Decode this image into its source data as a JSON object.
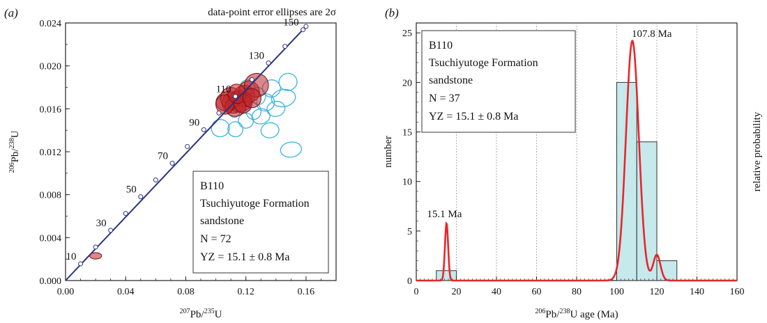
{
  "panel_a": {
    "label_open": "(",
    "label_letter": "a",
    "label_close": ")",
    "note": "data-point error ellipses are 2σ",
    "axis": {
      "x_sup": "207",
      "x_main": "Pb/",
      "x_sup2": "235",
      "x_tail": "U",
      "y_sup": "206",
      "y_main": "Pb/",
      "y_sup2": "238",
      "y_tail": "U"
    },
    "legend": {
      "line1": "B110",
      "line2": "Tsuchiyutoge Formation",
      "line3": "sandstone",
      "line4": "N = 72",
      "line5": "YZ = 15.1 ± 0.8 Ma"
    }
  },
  "panel_b": {
    "label_open": "(",
    "label_letter": "b",
    "label_close": ")",
    "axis": {
      "x_sup": "206",
      "x_main": "Pb/",
      "x_sup2": "238",
      "x_tail": "U age (Ma)",
      "y_left": "number",
      "y_right": "relative probability"
    },
    "legend": {
      "line1": "B110",
      "line2": "Tsuchiyutoge Formation",
      "line3": "sandstone",
      "line4": "N = 37",
      "line5": "YZ = 15.1 ± 0.8 Ma"
    }
  },
  "chart_data": [
    {
      "type": "scatter",
      "subtype": "concordia",
      "xlim": [
        0.0,
        0.18
      ],
      "ylim": [
        0.0,
        0.024
      ],
      "x_ticks": [
        0.0,
        0.04,
        0.08,
        0.12,
        0.16
      ],
      "x_tick_labels": [
        "0.00",
        "0.04",
        "0.08",
        "0.12",
        "0.16"
      ],
      "y_ticks": [
        0.0,
        0.004,
        0.008,
        0.012,
        0.016,
        0.02,
        0.024
      ],
      "y_tick_labels": [
        "0.000",
        "0.004",
        "0.008",
        "0.012",
        "0.016",
        "0.020",
        "0.024"
      ],
      "concordia_markers": [
        {
          "age": 10,
          "label": "10",
          "x": 0.01,
          "y": 0.00156
        },
        {
          "age": 20,
          "label": "",
          "x": 0.02,
          "y": 0.00312
        },
        {
          "age": 30,
          "label": "30",
          "x": 0.03,
          "y": 0.00468
        },
        {
          "age": 40,
          "label": "",
          "x": 0.04,
          "y": 0.00625
        },
        {
          "age": 50,
          "label": "50",
          "x": 0.05,
          "y": 0.00781
        },
        {
          "age": 60,
          "label": "",
          "x": 0.06,
          "y": 0.00937
        },
        {
          "age": 70,
          "label": "70",
          "x": 0.071,
          "y": 0.01093
        },
        {
          "age": 80,
          "label": "",
          "x": 0.081,
          "y": 0.01249
        },
        {
          "age": 90,
          "label": "90",
          "x": 0.092,
          "y": 0.01405
        },
        {
          "age": 100,
          "label": "",
          "x": 0.102,
          "y": 0.01561
        },
        {
          "age": 110,
          "label": "110",
          "x": 0.113,
          "y": 0.01716
        },
        {
          "age": 120,
          "label": "",
          "x": 0.124,
          "y": 0.01872
        },
        {
          "age": 130,
          "label": "130",
          "x": 0.135,
          "y": 0.02027
        },
        {
          "age": 140,
          "label": "",
          "x": 0.146,
          "y": 0.02182
        },
        {
          "age": 150,
          "label": "150",
          "x": 0.158,
          "y": 0.02337
        },
        {
          "age": 152,
          "label": "",
          "x": 0.16,
          "y": 0.02368
        }
      ],
      "series": [
        {
          "color": "#3bb3e0",
          "fill": "none",
          "ellipses": [
            {
              "x": 0.148,
              "y": 0.0185,
              "rx": 0.006,
              "ry": 0.0008,
              "rot": -12
            },
            {
              "x": 0.137,
              "y": 0.0179,
              "rx": 0.006,
              "ry": 0.0008,
              "rot": -10
            },
            {
              "x": 0.145,
              "y": 0.017,
              "rx": 0.008,
              "ry": 0.0008,
              "rot": -10
            },
            {
              "x": 0.133,
              "y": 0.0166,
              "rx": 0.006,
              "ry": 0.0008,
              "rot": -10
            },
            {
              "x": 0.128,
              "y": 0.0172,
              "rx": 0.005,
              "ry": 0.0008,
              "rot": -10
            },
            {
              "x": 0.118,
              "y": 0.0164,
              "rx": 0.005,
              "ry": 0.0008,
              "rot": -12
            },
            {
              "x": 0.125,
              "y": 0.0158,
              "rx": 0.005,
              "ry": 0.0008,
              "rot": -10
            },
            {
              "x": 0.112,
              "y": 0.0159,
              "rx": 0.004,
              "ry": 0.0007,
              "rot": -12
            },
            {
              "x": 0.13,
              "y": 0.0153,
              "rx": 0.006,
              "ry": 0.0007,
              "rot": -10
            },
            {
              "x": 0.14,
              "y": 0.016,
              "rx": 0.006,
              "ry": 0.0007,
              "rot": -10
            },
            {
              "x": 0.12,
              "y": 0.0149,
              "rx": 0.005,
              "ry": 0.0007,
              "rot": -10
            },
            {
              "x": 0.103,
              "y": 0.0142,
              "rx": 0.006,
              "ry": 0.0008,
              "rot": -15
            },
            {
              "x": 0.113,
              "y": 0.0141,
              "rx": 0.005,
              "ry": 0.0007,
              "rot": -10
            },
            {
              "x": 0.136,
              "y": 0.014,
              "rx": 0.006,
              "ry": 0.0007,
              "rot": -8
            },
            {
              "x": 0.15,
              "y": 0.0122,
              "rx": 0.007,
              "ry": 0.0007,
              "rot": -8
            },
            {
              "x": 0.121,
              "y": 0.018,
              "rx": 0.005,
              "ry": 0.0007,
              "rot": -10
            }
          ]
        },
        {
          "color": "#7a1010",
          "fill": "#c0262b",
          "ellipses": [
            {
              "x": 0.112,
              "y": 0.0166,
              "rx": 0.008,
              "ry": 0.001,
              "rot": -14
            },
            {
              "x": 0.108,
              "y": 0.0167,
              "rx": 0.008,
              "ry": 0.0009,
              "rot": -14
            },
            {
              "x": 0.116,
              "y": 0.0167,
              "rx": 0.008,
              "ry": 0.001,
              "rot": -14
            },
            {
              "x": 0.11,
              "y": 0.017,
              "rx": 0.007,
              "ry": 0.001,
              "rot": -14
            },
            {
              "x": 0.119,
              "y": 0.0172,
              "rx": 0.007,
              "ry": 0.001,
              "rot": -14
            },
            {
              "x": 0.113,
              "y": 0.0162,
              "rx": 0.007,
              "ry": 0.0009,
              "rot": -14
            },
            {
              "x": 0.122,
              "y": 0.0176,
              "rx": 0.007,
              "ry": 0.001,
              "rot": -14
            },
            {
              "x": 0.127,
              "y": 0.0182,
              "rx": 0.008,
              "ry": 0.0011,
              "rot": -14
            },
            {
              "x": 0.106,
              "y": 0.0164,
              "rx": 0.006,
              "ry": 0.0009,
              "rot": -14
            },
            {
              "x": 0.118,
              "y": 0.0165,
              "rx": 0.006,
              "ry": 0.0009,
              "rot": -14
            },
            {
              "x": 0.114,
              "y": 0.0174,
              "rx": 0.006,
              "ry": 0.0009,
              "rot": -14
            },
            {
              "x": 0.124,
              "y": 0.017,
              "rx": 0.006,
              "ry": 0.0009,
              "rot": -14
            },
            {
              "x": 0.02,
              "y": 0.0023,
              "rx": 0.004,
              "ry": 0.0003,
              "rot": 0
            }
          ]
        }
      ],
      "grid": false
    },
    {
      "type": "bar",
      "subtype": "histogram-with-probability-density",
      "xlim": [
        0,
        160
      ],
      "ylim": [
        0,
        26
      ],
      "x_ticks": [
        0,
        20,
        40,
        60,
        80,
        100,
        120,
        140,
        160
      ],
      "y_ticks": [
        0,
        5,
        10,
        15,
        20,
        25
      ],
      "bin_edges": [
        10,
        20,
        100,
        110,
        120,
        130
      ],
      "bins": [
        {
          "x0": 10,
          "x1": 20,
          "count": 1
        },
        {
          "x0": 100,
          "x1": 110,
          "count": 20
        },
        {
          "x0": 110,
          "x1": 120,
          "count": 14
        },
        {
          "x0": 120,
          "x1": 130,
          "count": 2
        }
      ],
      "bar_color": "#c6e9ec",
      "curve_color": "#e8262a",
      "curve_peaks": [
        {
          "mu": 15.1,
          "sigma": 0.8,
          "height": 5.8
        },
        {
          "mu": 107.8,
          "sigma": 3.2,
          "height": 24.2
        },
        {
          "mu": 120.0,
          "sigma": 1.8,
          "height": 2.6
        }
      ],
      "annotations": [
        {
          "x": 15.1,
          "y": 6.4,
          "text": "15.1 Ma"
        },
        {
          "x": 108.5,
          "y": 24.6,
          "text": "107.8 Ma"
        }
      ],
      "grid": true
    }
  ]
}
